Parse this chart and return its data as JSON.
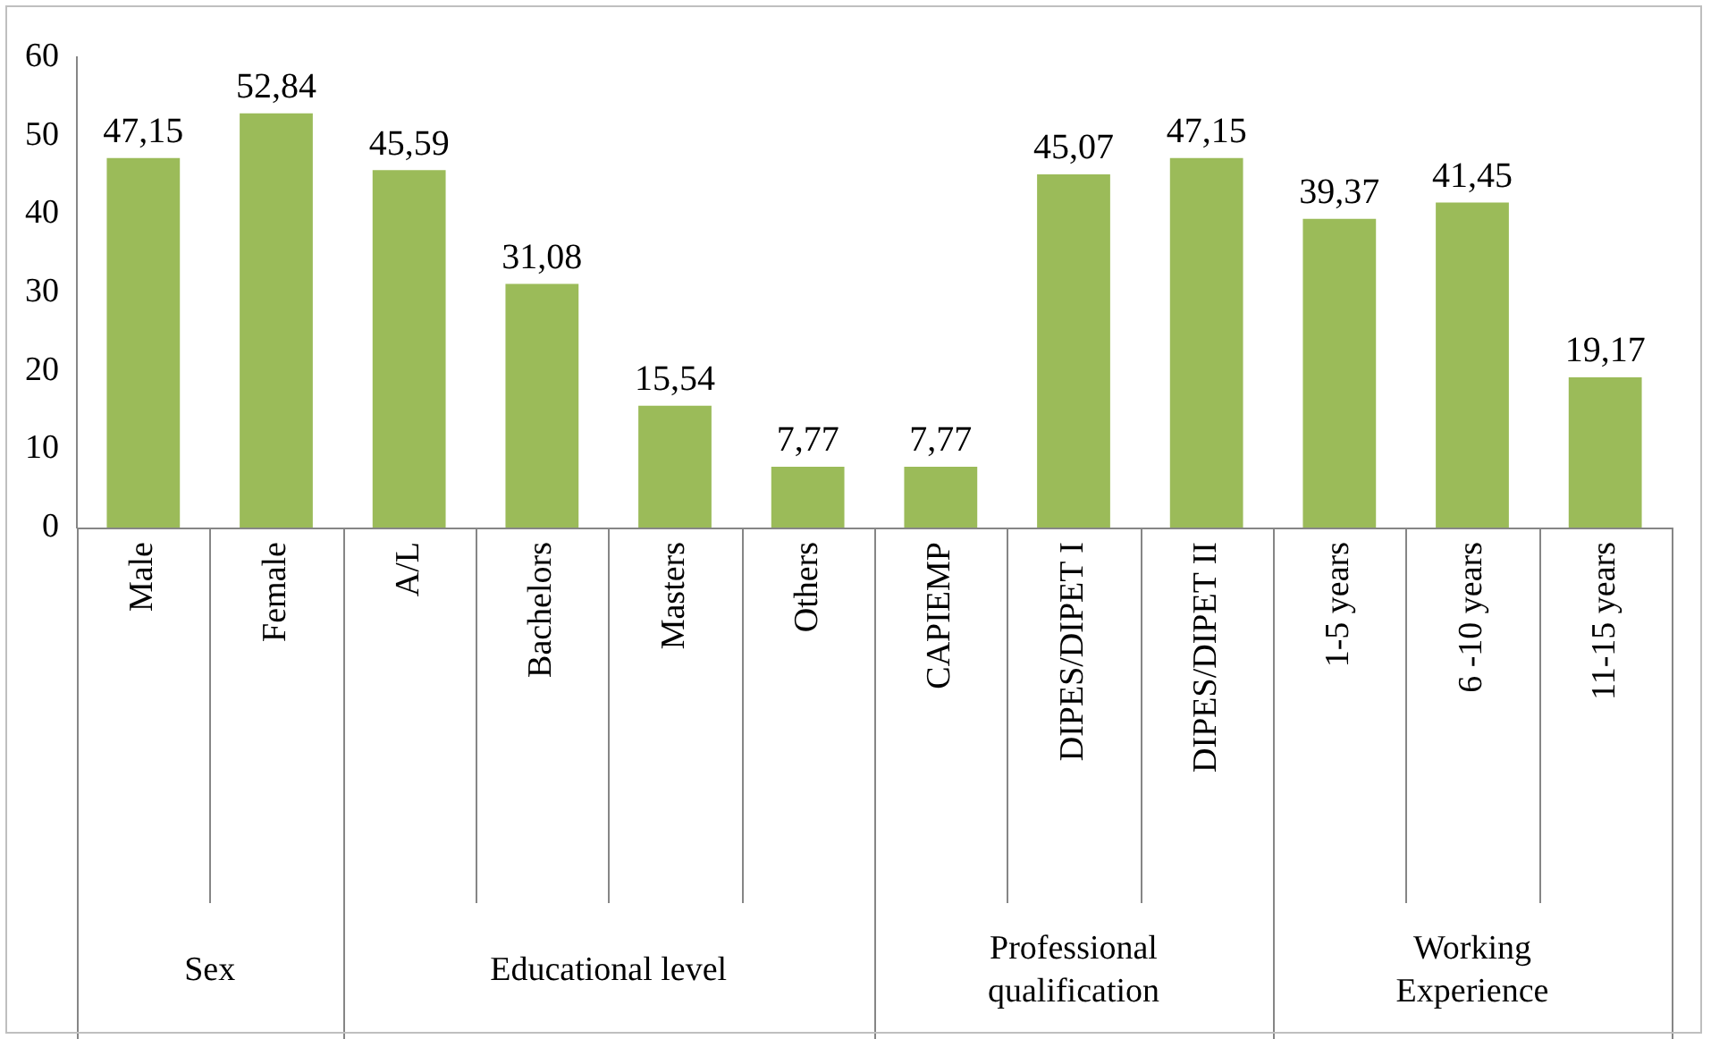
{
  "chart_data": {
    "type": "bar",
    "categories": [
      "Male",
      "Female",
      "A/L",
      "Bachelors",
      "Masters",
      "Others",
      "CAPIEMP",
      "DIPES/DIPET I",
      "DIPES/DIPET II",
      "1-5 years",
      "6 -10 years",
      "11-15 years"
    ],
    "values": [
      47.15,
      52.84,
      45.59,
      31.08,
      15.54,
      7.77,
      7.77,
      45.07,
      47.15,
      39.37,
      41.45,
      19.17
    ],
    "value_labels": [
      "47,15",
      "52,84",
      "45,59",
      "31,08",
      "15,54",
      "7,77",
      "7,77",
      "45,07",
      "47,15",
      "39,37",
      "41,45",
      "19,17"
    ],
    "color": "#9bbb59",
    "ylim": [
      0,
      60
    ],
    "yticks": [
      0,
      10,
      20,
      30,
      40,
      50,
      60
    ],
    "grid": false,
    "legend": false,
    "annotations": [
      "Sex",
      "Educational level",
      "Professional\nqualification",
      "Working\nExperience"
    ]
  }
}
